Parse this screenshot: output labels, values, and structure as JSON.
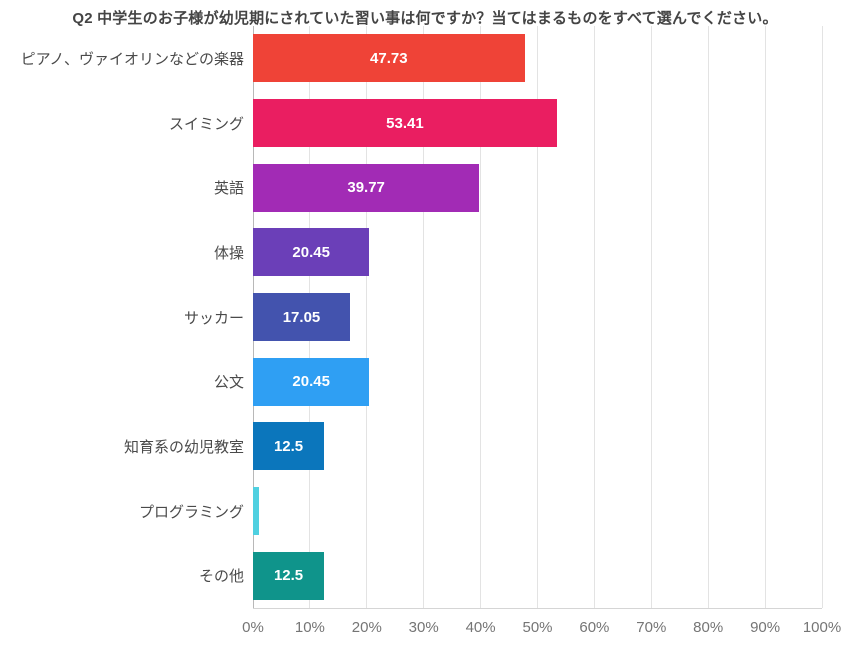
{
  "colors": {
    "page_background": "#FFFFFF",
    "title_text": "#444444",
    "category_text": "#4A4A4A",
    "tick_text": "#757575",
    "value_text": "#FFFFFF",
    "gridline": "#E3E3E3",
    "zero_line": "#B8B8B8",
    "axis_line": "#D5D5D5"
  },
  "chart_data": {
    "type": "bar",
    "orientation": "horizontal",
    "title": "Q2 中学生のお子様が幼児期にされていた習い事は何ですか？当てはまるものをすべて選んでください。",
    "categories": [
      "ピアノ、ヴァイオリンなどの楽器",
      "スイミング",
      "英語",
      "体操",
      "サッカー",
      "公文",
      "知育系の幼児教室",
      "プログラミング",
      "その他"
    ],
    "values": [
      47.73,
      53.41,
      39.77,
      20.45,
      17.05,
      20.45,
      12.5,
      1.14,
      12.5
    ],
    "bar_labels": [
      "47.73",
      "53.41",
      "39.77",
      "20.45",
      "17.05",
      "20.45",
      "12.5",
      "",
      "12.5"
    ],
    "bar_colors": [
      "#EF4337",
      "#EA1E61",
      "#A22BB5",
      "#6B3FB8",
      "#4353AE",
      "#2F9FF3",
      "#0B76BC",
      "#4FD0E0",
      "#0F948B"
    ],
    "x_ticks": [
      "0%",
      "10%",
      "20%",
      "30%",
      "40%",
      "50%",
      "60%",
      "70%",
      "80%",
      "90%",
      "100%"
    ],
    "x_tick_values": [
      0,
      10,
      20,
      30,
      40,
      50,
      60,
      70,
      80,
      90,
      100
    ],
    "xlabel": "",
    "ylabel": "",
    "xlim": [
      0,
      100
    ],
    "grid": "vertical",
    "legend": "none"
  }
}
